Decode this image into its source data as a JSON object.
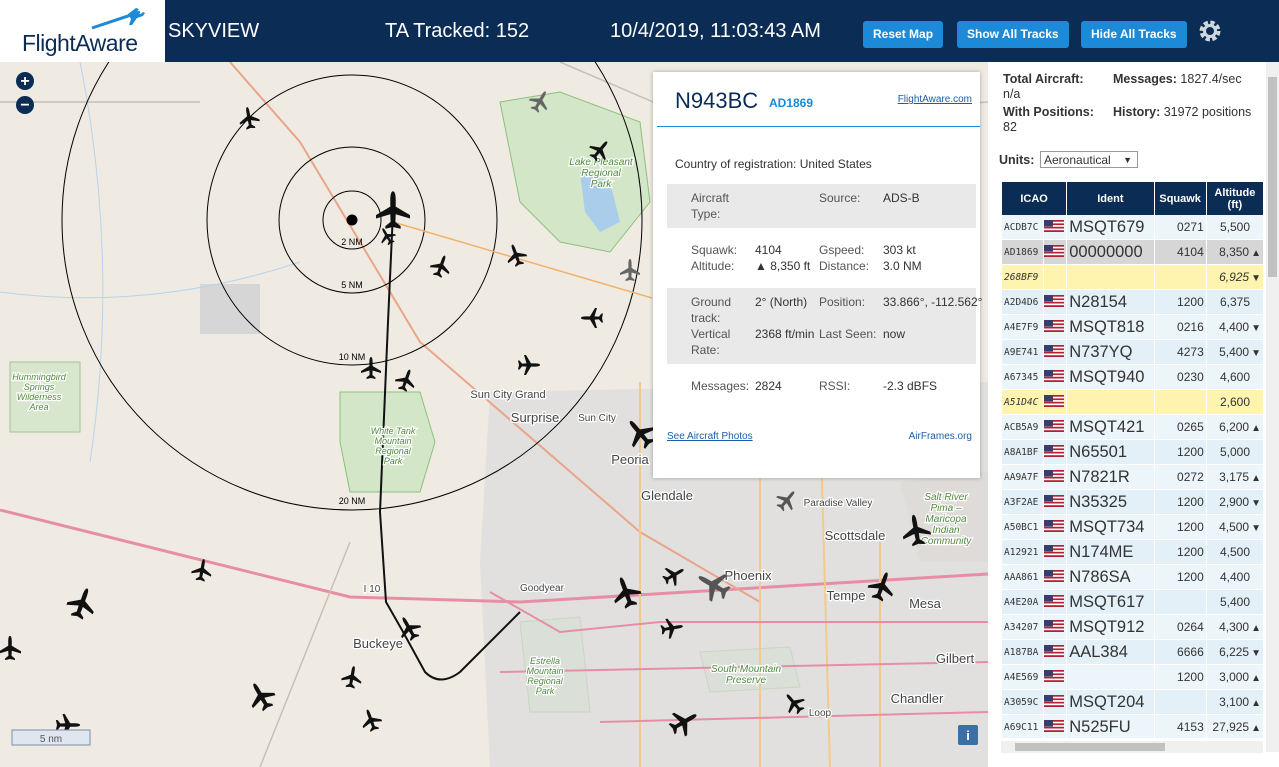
{
  "header": {
    "logo": "FlightAware",
    "title": "SKYVIEW",
    "tracked": "TA Tracked: 152",
    "datetime": "10/4/2019, 11:03:43 AM",
    "buttons": [
      "Reset Map",
      "Show All Tracks",
      "Hide All Tracks"
    ]
  },
  "map": {
    "zoom_in": "+",
    "zoom_out": "−",
    "rings": [
      "2 NM",
      "5 NM",
      "10 NM",
      "20 NM"
    ],
    "scale": "5 nm",
    "info": "i",
    "places": [
      [
        "Lake Pleasant",
        "Regional",
        "Park"
      ],
      [
        "Hummingbird",
        "Springs",
        "Wilderness",
        "Area"
      ],
      [
        "White Tank",
        "Mountain",
        "Regional",
        "Park"
      ],
      [
        "Sun City Grand"
      ],
      [
        "Surprise"
      ],
      [
        "Sun City"
      ],
      [
        "Peoria"
      ],
      [
        "Glendale"
      ],
      [
        "Paradise Valley"
      ],
      [
        "Salt River",
        "Pima –",
        "Maricopa",
        "Indian",
        "Community"
      ],
      [
        "Scottsdale"
      ],
      [
        "Phoenix"
      ],
      [
        "Tempe"
      ],
      [
        "Mesa"
      ],
      [
        "Goodyear"
      ],
      [
        "I 10"
      ],
      [
        "Buckeye"
      ],
      [
        "Estrella",
        "Mountain",
        "Regional",
        "Park"
      ],
      [
        "South Mountain",
        "Preserve"
      ],
      [
        "Gilbert"
      ],
      [
        "Chandler"
      ],
      [
        "Loop"
      ]
    ]
  },
  "popup": {
    "callsign": "N943BC",
    "icao": "AD1869",
    "link": "FlightAware.com",
    "country_label": "Country of registration:",
    "country": "United States",
    "sections": [
      [
        [
          "Aircraft Type:"
        ],
        [
          "Source:",
          "ADS-B"
        ]
      ],
      [
        [
          "Squawk:",
          "4104"
        ],
        [
          "Gspeed:",
          "303 kt"
        ],
        [
          "Altitude:",
          "▲ 8,350 ft"
        ],
        [
          "Distance:",
          "3.0 NM"
        ]
      ],
      [
        [
          "Ground track:",
          "2° (North)"
        ],
        [
          "Position:",
          "33.866°, -112.562°"
        ],
        [
          "Vertical Rate:",
          "2368 ft/min"
        ],
        [
          "Last Seen:",
          "now"
        ]
      ],
      [
        [
          "Messages:",
          "2824"
        ],
        [
          "RSSI:",
          "-2.3 dBFS"
        ]
      ]
    ],
    "photos": "See Aircraft Photos",
    "airframes": "AirFrames.org"
  },
  "sidebar": {
    "stats": [
      [
        "Total Aircraft:",
        "n/a"
      ],
      [
        "Messages:",
        "1827.4/sec"
      ],
      [
        "With Positions:",
        "82"
      ],
      [
        "History:",
        "31972 positions"
      ]
    ],
    "units_label": "Units:",
    "units": "Aeronautical",
    "columns": [
      "ICAO",
      "Ident",
      "Squawk",
      "Altitude (ft)"
    ],
    "rows": [
      {
        "icao": "ACDB7C",
        "flag": true,
        "ident": "MSQT679",
        "squawk": "0271",
        "alt": "5,500"
      },
      {
        "icao": "AD1869",
        "flag": true,
        "ident": "00000000",
        "squawk": "4104",
        "alt": "8,350",
        "trend": "▲",
        "style": "selected"
      },
      {
        "icao": "268BF9",
        "flag": false,
        "alt": "6,925",
        "trend": "▼",
        "style": "no-position"
      },
      {
        "icao": "A2D4D6",
        "flag": true,
        "ident": "N28154",
        "squawk": "1200",
        "alt": "6,375"
      },
      {
        "icao": "A4E7F9",
        "flag": true,
        "ident": "MSQT818",
        "squawk": "0216",
        "alt": "4,400",
        "trend": "▼"
      },
      {
        "icao": "A9E741",
        "flag": true,
        "ident": "N737YQ",
        "squawk": "4273",
        "alt": "5,400",
        "trend": "▼"
      },
      {
        "icao": "A67345",
        "flag": true,
        "ident": "MSQT940",
        "squawk": "0230",
        "alt": "4,600"
      },
      {
        "icao": "A51D4C",
        "flag": true,
        "alt": "2,600",
        "style": "no-position"
      },
      {
        "icao": "ACB5A9",
        "flag": true,
        "ident": "MSQT421",
        "squawk": "0265",
        "alt": "6,200",
        "trend": "▲"
      },
      {
        "icao": "A8A1BF",
        "flag": true,
        "ident": "N65501",
        "squawk": "1200",
        "alt": "5,000"
      },
      {
        "icao": "AA9A7F",
        "flag": true,
        "ident": "N7821R",
        "squawk": "0272",
        "alt": "3,175",
        "trend": "▲"
      },
      {
        "icao": "A3F2AE",
        "flag": true,
        "ident": "N35325",
        "squawk": "1200",
        "alt": "2,900",
        "trend": "▼"
      },
      {
        "icao": "A50BC1",
        "flag": true,
        "ident": "MSQT734",
        "squawk": "1200",
        "alt": "4,500",
        "trend": "▼"
      },
      {
        "icao": "A12921",
        "flag": true,
        "ident": "N174ME",
        "squawk": "1200",
        "alt": "4,500"
      },
      {
        "icao": "AAA861",
        "flag": true,
        "ident": "N786SA",
        "squawk": "1200",
        "alt": "4,400"
      },
      {
        "icao": "A4E20A",
        "flag": true,
        "ident": "MSQT617",
        "alt": "5,400"
      },
      {
        "icao": "A34207",
        "flag": true,
        "ident": "MSQT912",
        "squawk": "0264",
        "alt": "4,300",
        "trend": "▲"
      },
      {
        "icao": "A187BA",
        "flag": true,
        "ident": "AAL384",
        "squawk": "6666",
        "alt": "6,225",
        "trend": "▼"
      },
      {
        "icao": "A4E569",
        "flag": true,
        "squawk": "1200",
        "alt": "3,000",
        "trend": "▲"
      },
      {
        "icao": "A3059C",
        "flag": true,
        "ident": "MSQT204",
        "alt": "3,100",
        "trend": "▲"
      },
      {
        "icao": "A69C11",
        "flag": true,
        "ident": "N525FU",
        "squawk": "4153",
        "alt": "27,925",
        "trend": "▲"
      }
    ]
  }
}
